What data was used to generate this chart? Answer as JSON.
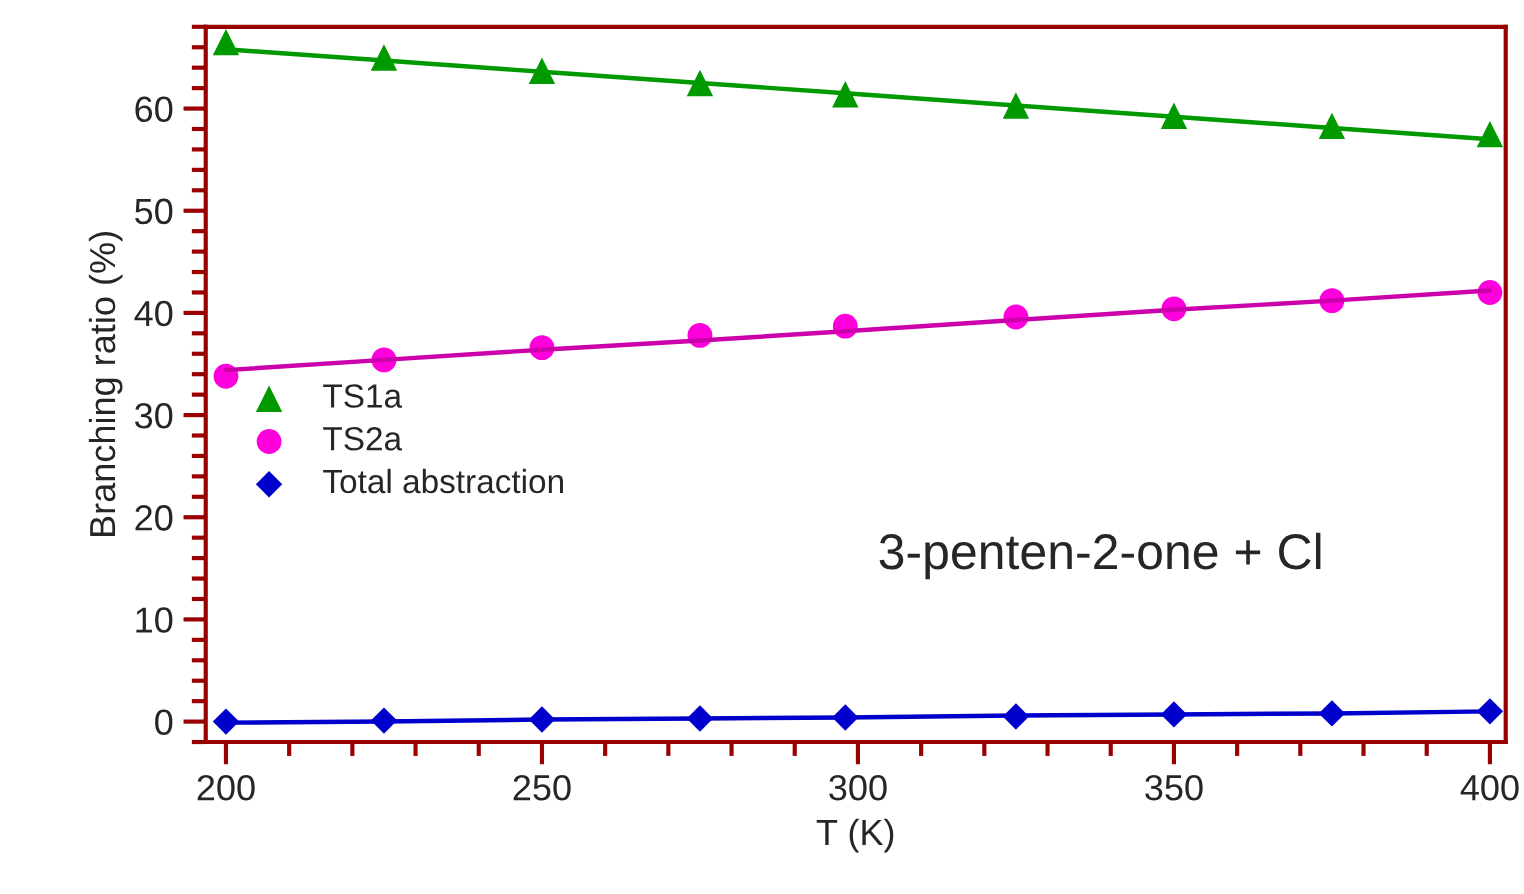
{
  "chart_data": {
    "type": "scatter",
    "xlabel": "T (K)",
    "ylabel": "Branching ratio (%)",
    "x": [
      200,
      225,
      250,
      275,
      298,
      325,
      350,
      375,
      400
    ],
    "series": [
      {
        "name": "TS1a",
        "color": "#009900",
        "marker": "triangle",
        "values": [
          66.5,
          65.0,
          63.7,
          62.5,
          61.4,
          60.3,
          59.3,
          58.3,
          57.5
        ]
      },
      {
        "name": "TS2a",
        "color": "#ff00dd",
        "marker": "circle",
        "values": [
          33.8,
          35.4,
          36.6,
          37.8,
          38.7,
          39.6,
          40.4,
          41.2,
          42.0
        ]
      },
      {
        "name": "Total abstraction",
        "color": "#0000cc",
        "marker": "diamond",
        "values": [
          0.0,
          0.1,
          0.2,
          0.3,
          0.4,
          0.5,
          0.7,
          0.8,
          1.0
        ]
      },
      {
        "type": "line",
        "color": "#009900",
        "values": [
          65.8,
          64.7,
          63.6,
          62.5,
          61.5,
          60.3,
          59.2,
          58.1,
          57.0
        ]
      },
      {
        "type": "line",
        "color": "#cc00aa",
        "values": [
          34.4,
          35.4,
          36.4,
          37.3,
          38.2,
          39.3,
          40.3,
          41.2,
          42.2
        ]
      },
      {
        "type": "line",
        "color": "#0000cc",
        "values": [
          -0.1,
          0.0,
          0.2,
          0.3,
          0.4,
          0.6,
          0.7,
          0.8,
          1.0
        ]
      }
    ],
    "annotations": [
      {
        "text": "3-penten-2-one + Cl"
      }
    ],
    "xlim": [
      196.8,
      402.5
    ],
    "ylim": [
      -2,
      68
    ],
    "xticks": [
      200,
      250,
      300,
      350,
      400
    ],
    "yticks": [
      0,
      10,
      20,
      30,
      40,
      50,
      60
    ],
    "grid": false,
    "legend": "left",
    "line_style": "solid"
  }
}
